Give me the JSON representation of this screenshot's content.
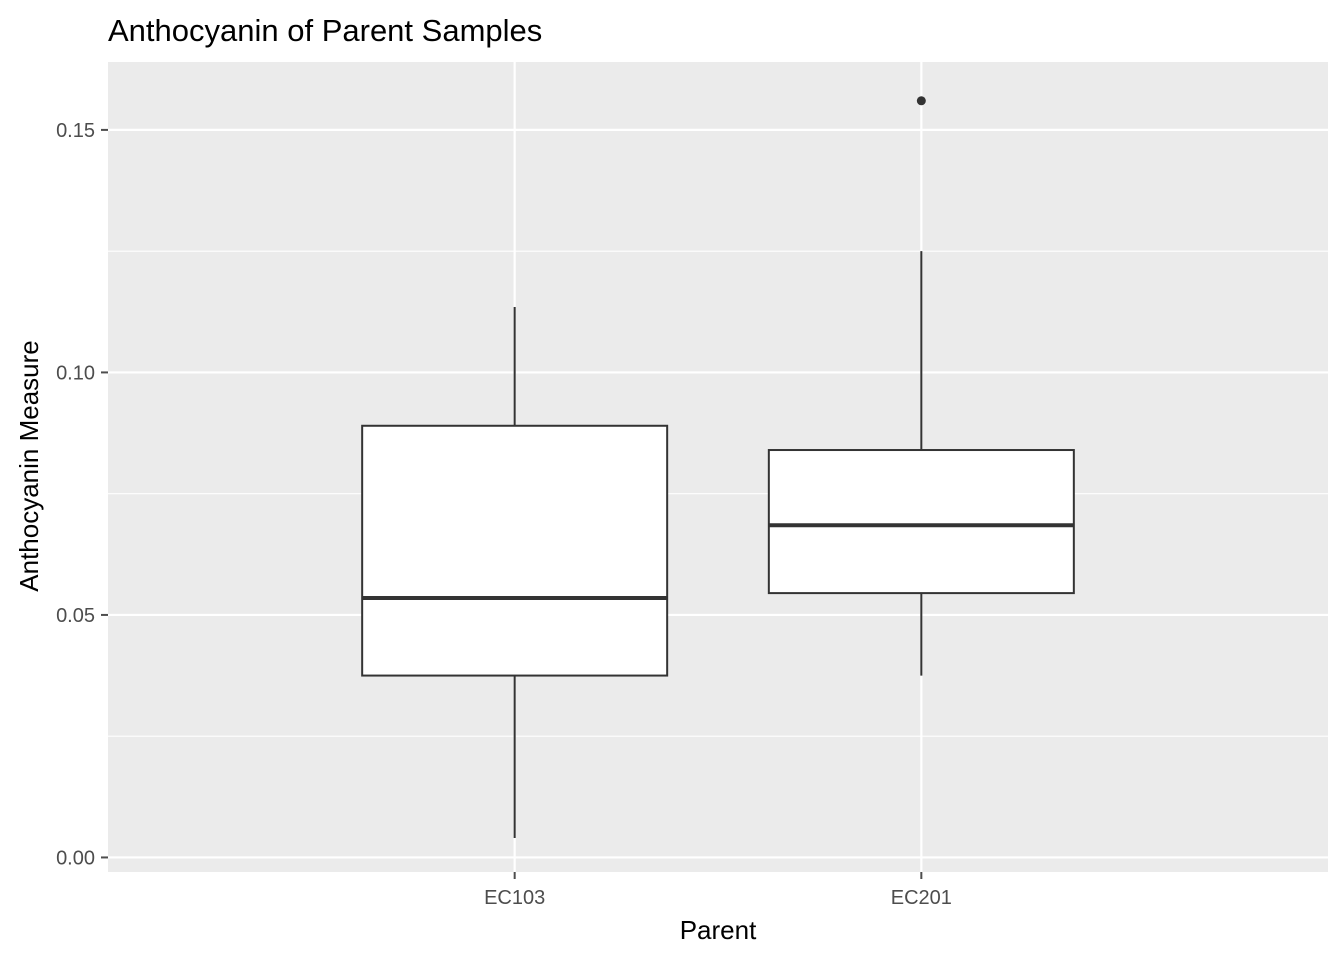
{
  "chart_data": {
    "type": "boxplot",
    "title": "Anthocyanin of Parent Samples",
    "xlabel": "Parent",
    "ylabel": "Anthocyanin Measure",
    "categories": [
      "EC103",
      "EC201"
    ],
    "ylim": [
      -0.003,
      0.164
    ],
    "yticks": [
      0.0,
      0.05,
      0.1,
      0.15
    ],
    "ytick_labels": [
      "0.00",
      "0.05",
      "0.10",
      "0.15"
    ],
    "boxes": [
      {
        "category": "EC103",
        "whisker_low": 0.004,
        "q1": 0.0375,
        "median": 0.0535,
        "q3": 0.089,
        "whisker_high": 0.1135,
        "outliers": []
      },
      {
        "category": "EC201",
        "whisker_low": 0.0375,
        "q1": 0.0545,
        "median": 0.0685,
        "q3": 0.084,
        "whisker_high": 0.125,
        "outliers": [
          0.156
        ]
      }
    ],
    "grid": true,
    "legend": "none",
    "colors": {
      "panel": "#ebebeb",
      "grid": "#ffffff",
      "box_fill": "#ffffff",
      "box_line": "#333333",
      "tick": "#4d4d4d"
    }
  }
}
